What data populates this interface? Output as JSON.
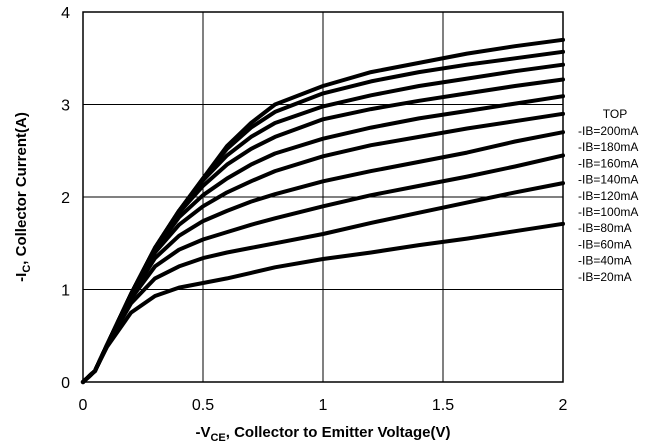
{
  "chart_data": {
    "type": "line",
    "xlabel": {
      "prefix": "-V",
      "sub": "CE",
      "suffix": ", Collector to Emitter Voltage(V)"
    },
    "ylabel": {
      "prefix": "-I",
      "sub": "C",
      "suffix": ", Collector Current(A)"
    },
    "xlim": [
      0,
      2
    ],
    "ylim": [
      0,
      4
    ],
    "xticks": [
      "0",
      "0.5",
      "1",
      "1.5",
      "2"
    ],
    "yticks": [
      "0",
      "1",
      "2",
      "3",
      "4"
    ],
    "grid": true,
    "legend_position": "right",
    "legend_header": "TOP",
    "legend": [
      "-IB=200mA",
      "-IB=180mA",
      "-IB=160mA",
      "-IB=140mA",
      "-IB=120mA",
      "-IB=100mA",
      "-IB=80mA",
      "-IB=60mA",
      "-IB=40mA",
      "-IB=20mA"
    ],
    "x": [
      0,
      0.05,
      0.1,
      0.2,
      0.3,
      0.4,
      0.5,
      0.6,
      0.7,
      0.8,
      1.0,
      1.2,
      1.4,
      1.6,
      1.8,
      2.0
    ],
    "series": [
      {
        "name": "-IB=200mA",
        "values": [
          0,
          0.12,
          0.4,
          0.95,
          1.45,
          1.85,
          2.2,
          2.55,
          2.8,
          3.0,
          3.2,
          3.35,
          3.45,
          3.55,
          3.63,
          3.7
        ]
      },
      {
        "name": "-IB=180mA",
        "values": [
          0,
          0.12,
          0.4,
          0.95,
          1.45,
          1.85,
          2.2,
          2.52,
          2.75,
          2.92,
          3.12,
          3.25,
          3.35,
          3.43,
          3.5,
          3.57
        ]
      },
      {
        "name": "-IB=160mA",
        "values": [
          0,
          0.12,
          0.4,
          0.95,
          1.45,
          1.85,
          2.18,
          2.45,
          2.65,
          2.8,
          2.98,
          3.1,
          3.2,
          3.28,
          3.36,
          3.43
        ]
      },
      {
        "name": "-IB=140mA",
        "values": [
          0,
          0.12,
          0.4,
          0.95,
          1.45,
          1.83,
          2.12,
          2.35,
          2.52,
          2.65,
          2.84,
          2.95,
          3.04,
          3.12,
          3.2,
          3.27
        ]
      },
      {
        "name": "-IB=120mA",
        "values": [
          0,
          0.12,
          0.4,
          0.95,
          1.43,
          1.78,
          2.02,
          2.2,
          2.35,
          2.47,
          2.63,
          2.75,
          2.85,
          2.93,
          3.01,
          3.09
        ]
      },
      {
        "name": "-IB=100mA",
        "values": [
          0,
          0.12,
          0.4,
          0.94,
          1.4,
          1.7,
          1.9,
          2.05,
          2.17,
          2.28,
          2.44,
          2.56,
          2.65,
          2.74,
          2.82,
          2.9
        ]
      },
      {
        "name": "-IB=80mA",
        "values": [
          0,
          0.12,
          0.4,
          0.93,
          1.34,
          1.58,
          1.74,
          1.85,
          1.95,
          2.03,
          2.17,
          2.28,
          2.38,
          2.48,
          2.6,
          2.7
        ]
      },
      {
        "name": "-IB=60mA",
        "values": [
          0,
          0.12,
          0.4,
          0.9,
          1.25,
          1.43,
          1.54,
          1.62,
          1.7,
          1.77,
          1.9,
          2.02,
          2.12,
          2.22,
          2.33,
          2.45
        ]
      },
      {
        "name": "-IB=40mA",
        "values": [
          0,
          0.12,
          0.4,
          0.85,
          1.12,
          1.25,
          1.34,
          1.4,
          1.45,
          1.5,
          1.6,
          1.72,
          1.83,
          1.94,
          2.05,
          2.15
        ]
      },
      {
        "name": "-IB=20mA",
        "values": [
          0,
          0.12,
          0.38,
          0.75,
          0.93,
          1.02,
          1.07,
          1.12,
          1.18,
          1.24,
          1.33,
          1.4,
          1.48,
          1.55,
          1.63,
          1.71
        ]
      }
    ]
  }
}
